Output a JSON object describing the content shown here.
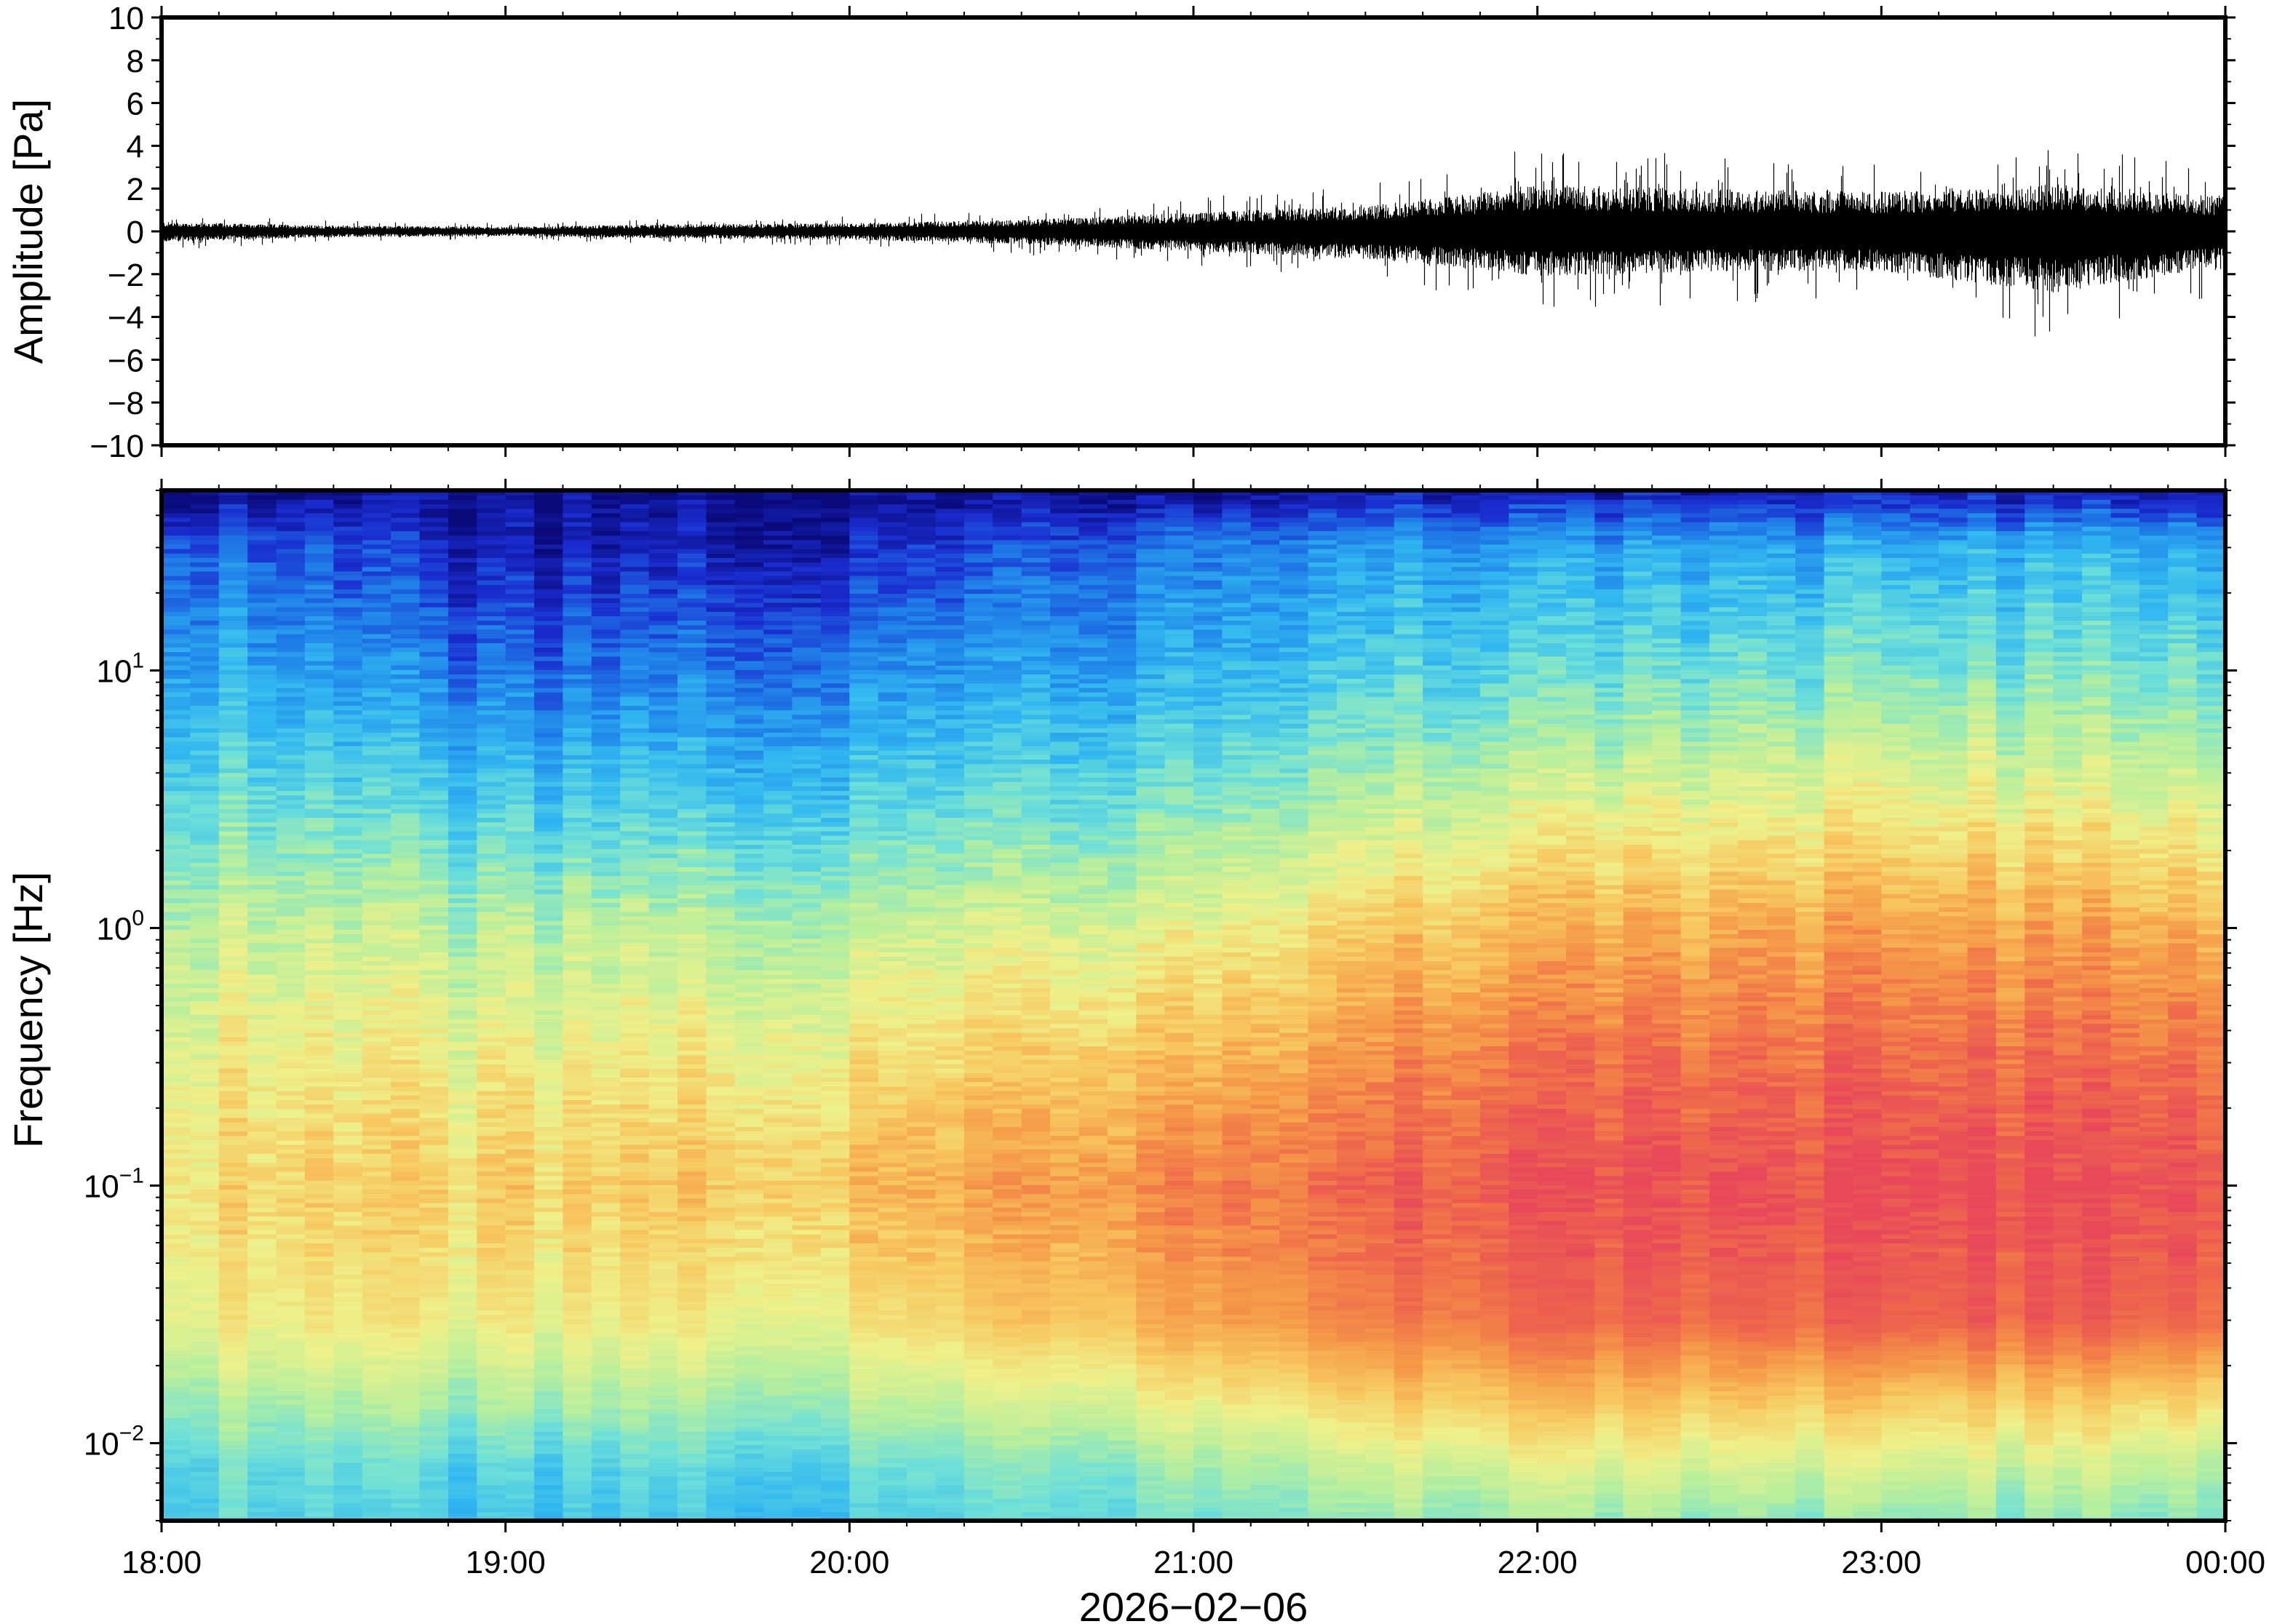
{
  "chart_data": [
    {
      "type": "line",
      "ylabel": "Amplitude [Pa]",
      "xlabel": "",
      "ylim": [
        -10,
        10
      ],
      "yticks": [
        "10",
        "8",
        "6",
        "4",
        "2",
        "0",
        "−2",
        "−4",
        "−6",
        "−8",
        "−10"
      ],
      "xlim": [
        "18:00",
        "00:00"
      ],
      "series": [
        {
          "x_hours": [
            18.0,
            18.5,
            19.0,
            19.5,
            20.0,
            20.5,
            21.0,
            21.5,
            21.75,
            22.0,
            22.5,
            23.0,
            23.5,
            24.0
          ],
          "envelope_max": [
            0.8,
            0.5,
            0.4,
            0.6,
            0.7,
            1.0,
            1.6,
            2.2,
            3.0,
            4.0,
            3.6,
            3.4,
            4.0,
            3.0
          ],
          "envelope_min": [
            -0.9,
            -0.5,
            -0.4,
            -0.6,
            -0.7,
            -1.1,
            -1.7,
            -2.4,
            -3.0,
            -3.8,
            -3.4,
            -3.4,
            -5.2,
            -3.0
          ]
        }
      ],
      "color": "#000000"
    },
    {
      "type": "heatmap",
      "ylabel": "Frequency [Hz]",
      "xlabel": "2026−02−06",
      "yscale": "log",
      "ylim": [
        0.005,
        50
      ],
      "yticks": [
        {
          "value": 0.01,
          "base": "10",
          "exp": "−2"
        },
        {
          "value": 0.1,
          "base": "10",
          "exp": "−1"
        },
        {
          "value": 1,
          "base": "10",
          "exp": "0"
        },
        {
          "value": 10,
          "base": "10",
          "exp": "1"
        }
      ],
      "xticks": [
        "18:00",
        "19:00",
        "20:00",
        "21:00",
        "22:00",
        "23:00",
        "00:00"
      ],
      "colormap": [
        "#0a0a7a",
        "#1a2ccf",
        "#1f7ee8",
        "#31b8f0",
        "#6ee0d8",
        "#b8ef9c",
        "#eef08a",
        "#f7c860",
        "#f59a48",
        "#ef6a4a",
        "#e8485a"
      ],
      "color_profile": {
        "freq_nodes_hz": [
          0.005,
          0.008,
          0.015,
          0.03,
          0.1,
          0.3,
          1,
          3,
          10,
          30,
          50
        ],
        "level_at_18h": [
          0.38,
          0.4,
          0.5,
          0.62,
          0.66,
          0.62,
          0.54,
          0.42,
          0.3,
          0.2,
          0.02
        ],
        "level_at_19h": [
          0.32,
          0.36,
          0.48,
          0.6,
          0.68,
          0.6,
          0.5,
          0.34,
          0.18,
          0.06,
          0.02
        ],
        "level_at_20h": [
          0.34,
          0.38,
          0.5,
          0.62,
          0.72,
          0.64,
          0.52,
          0.36,
          0.22,
          0.08,
          0.02
        ],
        "level_at_21h": [
          0.42,
          0.48,
          0.62,
          0.78,
          0.86,
          0.74,
          0.6,
          0.44,
          0.3,
          0.22,
          0.04
        ],
        "level_at_22h": [
          0.46,
          0.56,
          0.72,
          0.9,
          0.96,
          0.88,
          0.74,
          0.56,
          0.38,
          0.26,
          0.06
        ],
        "level_at_23h": [
          0.44,
          0.54,
          0.7,
          0.92,
          0.98,
          0.9,
          0.78,
          0.6,
          0.42,
          0.28,
          0.06
        ],
        "level_at_24h": [
          0.44,
          0.52,
          0.68,
          0.92,
          0.98,
          0.9,
          0.76,
          0.58,
          0.42,
          0.3,
          0.06
        ]
      }
    }
  ]
}
